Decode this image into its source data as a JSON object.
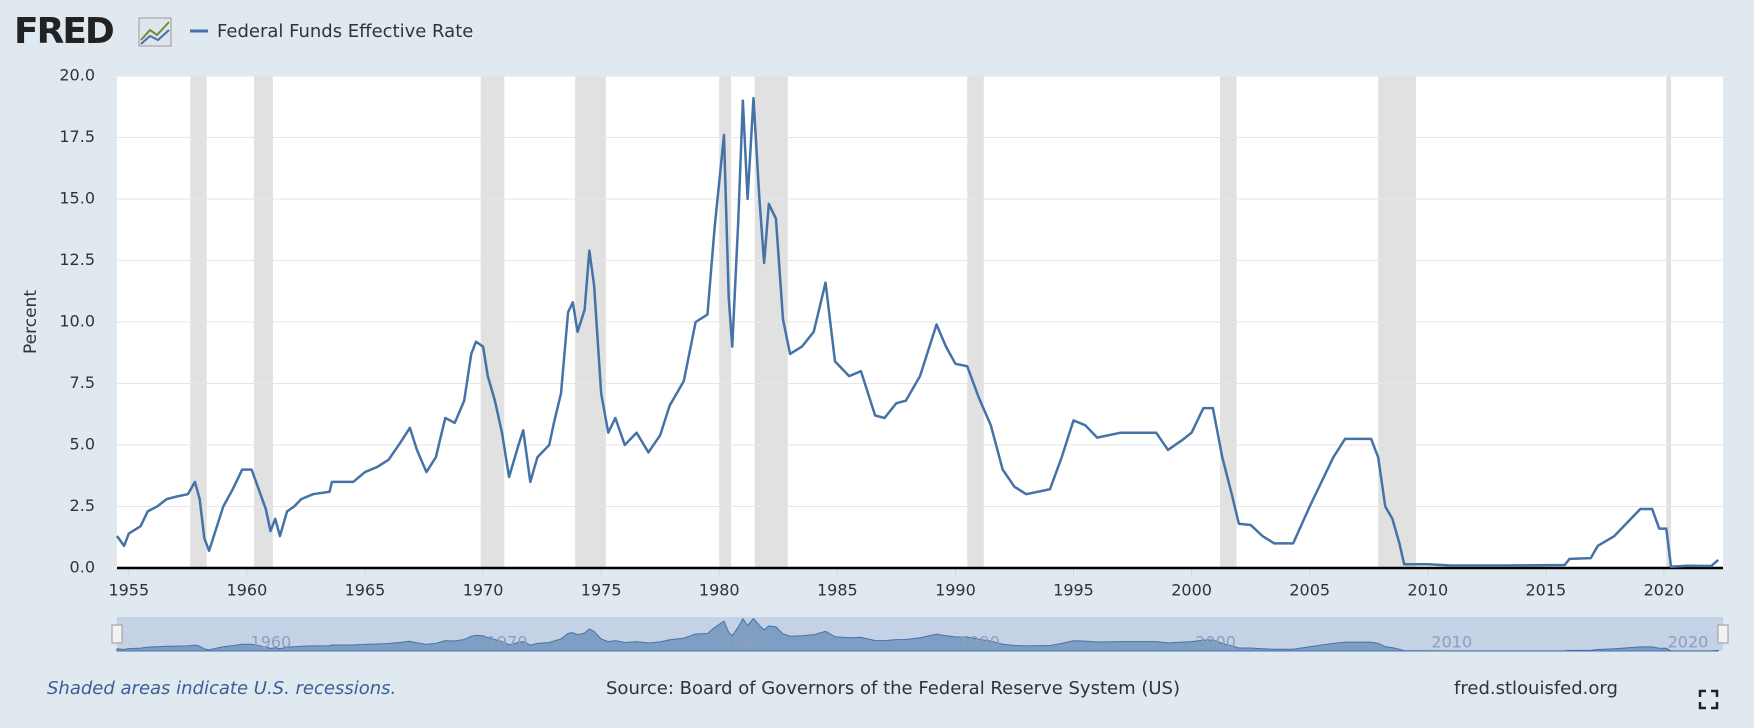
{
  "logo": "FRED",
  "chart_data": {
    "type": "line",
    "y_label": "Percent",
    "footer_note": "Shaded areas indicate U.S. recessions.",
    "source": "Source: Board of Governors of the Federal Reserve System (US)",
    "site": "fred.stlouisfed.org",
    "x": [
      1954.5,
      1954.8,
      1955.0,
      1955.5,
      1955.8,
      1956.2,
      1956.6,
      1957.0,
      1957.5,
      1957.8,
      1958.0,
      1958.2,
      1958.4,
      1958.7,
      1959.0,
      1959.4,
      1959.8,
      1960.2,
      1960.5,
      1960.8,
      1961.0,
      1961.2,
      1961.4,
      1961.7,
      1962.0,
      1962.3,
      1962.8,
      1963.5,
      1963.6,
      1964.0,
      1964.5,
      1965.0,
      1965.5,
      1966.0,
      1966.5,
      1966.9,
      1967.2,
      1967.6,
      1968.0,
      1968.4,
      1968.8,
      1969.2,
      1969.5,
      1969.7,
      1970.0,
      1970.2,
      1970.5,
      1970.8,
      1971.1,
      1971.5,
      1971.7,
      1972.0,
      1972.3,
      1972.8,
      1973.0,
      1973.3,
      1973.6,
      1973.8,
      1974.0,
      1974.3,
      1974.5,
      1974.7,
      1975.0,
      1975.3,
      1975.6,
      1976.0,
      1976.5,
      1977.0,
      1977.5,
      1977.9,
      1978.5,
      1979.0,
      1979.5,
      1979.8,
      1980.2,
      1980.4,
      1980.55,
      1980.8,
      1981.0,
      1981.2,
      1981.45,
      1981.7,
      1981.9,
      1982.1,
      1982.4,
      1982.7,
      1983.0,
      1983.5,
      1984.0,
      1984.5,
      1984.9,
      1985.5,
      1986.0,
      1986.6,
      1987.0,
      1987.5,
      1987.9,
      1988.5,
      1989.2,
      1989.6,
      1990.0,
      1990.5,
      1991.0,
      1991.5,
      1992.0,
      1992.5,
      1993.0,
      1994.0,
      1994.5,
      1995.0,
      1995.5,
      1996.0,
      1997.0,
      1998.5,
      1999.0,
      1999.6,
      2000.0,
      2000.5,
      2000.9,
      2001.3,
      2001.7,
      2002.0,
      2002.5,
      2003.0,
      2003.5,
      2004.3,
      2005.0,
      2006.0,
      2006.5,
      2007.6,
      2007.9,
      2008.2,
      2008.5,
      2008.8,
      2009.0,
      2010.0,
      2011.0,
      2013.0,
      2015.8,
      2016.0,
      2016.9,
      2017.2,
      2017.9,
      2018.5,
      2019.0,
      2019.5,
      2019.8,
      2020.1,
      2020.3,
      2021.0,
      2022.0,
      2022.3
    ],
    "series": [
      {
        "name": "Federal Funds Effective Rate",
        "color": "#4572a7",
        "values": [
          1.3,
          0.9,
          1.4,
          1.7,
          2.3,
          2.5,
          2.8,
          2.9,
          3.0,
          3.5,
          2.8,
          1.2,
          0.7,
          1.6,
          2.5,
          3.2,
          4.0,
          4.0,
          3.2,
          2.4,
          1.5,
          2.0,
          1.3,
          2.3,
          2.5,
          2.8,
          3.0,
          3.1,
          3.5,
          3.5,
          3.5,
          3.9,
          4.1,
          4.4,
          5.1,
          5.7,
          4.8,
          3.9,
          4.5,
          6.1,
          5.9,
          6.8,
          8.7,
          9.2,
          9.0,
          7.8,
          6.8,
          5.5,
          3.7,
          5.0,
          5.6,
          3.5,
          4.5,
          5.0,
          5.9,
          7.1,
          10.4,
          10.8,
          9.6,
          10.5,
          12.9,
          11.5,
          7.1,
          5.5,
          6.1,
          5.0,
          5.5,
          4.7,
          5.4,
          6.6,
          7.6,
          10.0,
          10.3,
          13.8,
          17.6,
          11.0,
          9.0,
          14.0,
          19.0,
          15.0,
          19.1,
          15.0,
          12.4,
          14.8,
          14.2,
          10.1,
          8.7,
          9.0,
          9.6,
          11.6,
          8.4,
          7.8,
          8.0,
          6.2,
          6.1,
          6.7,
          6.8,
          7.8,
          9.9,
          9.0,
          8.3,
          8.2,
          6.9,
          5.8,
          4.0,
          3.3,
          3.0,
          3.2,
          4.5,
          6.0,
          5.8,
          5.3,
          5.5,
          5.5,
          4.8,
          5.2,
          5.5,
          6.5,
          6.5,
          4.5,
          3.0,
          1.8,
          1.75,
          1.3,
          1.0,
          1.0,
          2.5,
          4.5,
          5.25,
          5.25,
          4.5,
          2.5,
          2.0,
          1.0,
          0.15,
          0.15,
          0.1,
          0.1,
          0.12,
          0.37,
          0.4,
          0.9,
          1.3,
          1.9,
          2.4,
          2.4,
          1.6,
          1.6,
          0.05,
          0.09,
          0.08,
          0.33
        ]
      }
    ],
    "recessions": [
      [
        1957.6,
        1958.3
      ],
      [
        1960.3,
        1961.1
      ],
      [
        1969.9,
        1970.9
      ],
      [
        1973.9,
        1975.2
      ],
      [
        1980.0,
        1980.5
      ],
      [
        1981.5,
        1982.9
      ],
      [
        1990.5,
        1991.2
      ],
      [
        2001.2,
        2001.9
      ],
      [
        2007.9,
        2009.5
      ],
      [
        2020.1,
        2020.3
      ]
    ],
    "xlim": [
      1954.5,
      2022.5
    ],
    "xticks": [
      1955,
      1960,
      1965,
      1970,
      1975,
      1980,
      1985,
      1990,
      1995,
      2000,
      2005,
      2010,
      2015,
      2020
    ],
    "ylim": [
      0,
      20
    ],
    "yticks": [
      {
        "value": 0,
        "label": "0.0"
      },
      {
        "value": 2.5,
        "label": "2.5"
      },
      {
        "value": 5,
        "label": "5.0"
      },
      {
        "value": 7.5,
        "label": "7.5"
      },
      {
        "value": 10,
        "label": "10.0"
      },
      {
        "value": 12.5,
        "label": "12.5"
      },
      {
        "value": 15,
        "label": "15.0"
      },
      {
        "value": 17.5,
        "label": "17.5"
      },
      {
        "value": 20,
        "label": "20.0"
      }
    ],
    "navigator_ticks": [
      1960,
      1970,
      1980,
      1990,
      2000,
      2010,
      2020
    ],
    "grid": true,
    "recession_color": "#e1e1e1"
  }
}
